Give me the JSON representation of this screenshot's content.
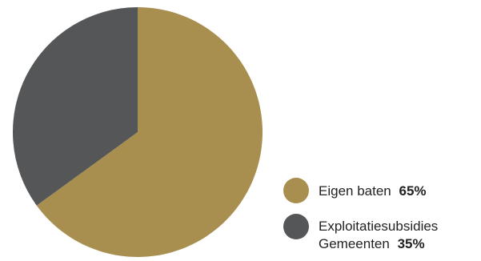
{
  "chart_data": {
    "type": "pie",
    "title": "",
    "slices": [
      {
        "name": "Eigen baten",
        "value": 65,
        "label": "Eigen baten",
        "percent_label": "65%",
        "color": "#A88F50"
      },
      {
        "name": "Exploitatiesubsidies Gemeenten",
        "value": 35,
        "label_line1": "Exploitatiesubsidies",
        "label_line2": "Gemeenten",
        "percent_label": "35%",
        "color": "#555657"
      }
    ],
    "legend_placement": "bottom-right"
  }
}
